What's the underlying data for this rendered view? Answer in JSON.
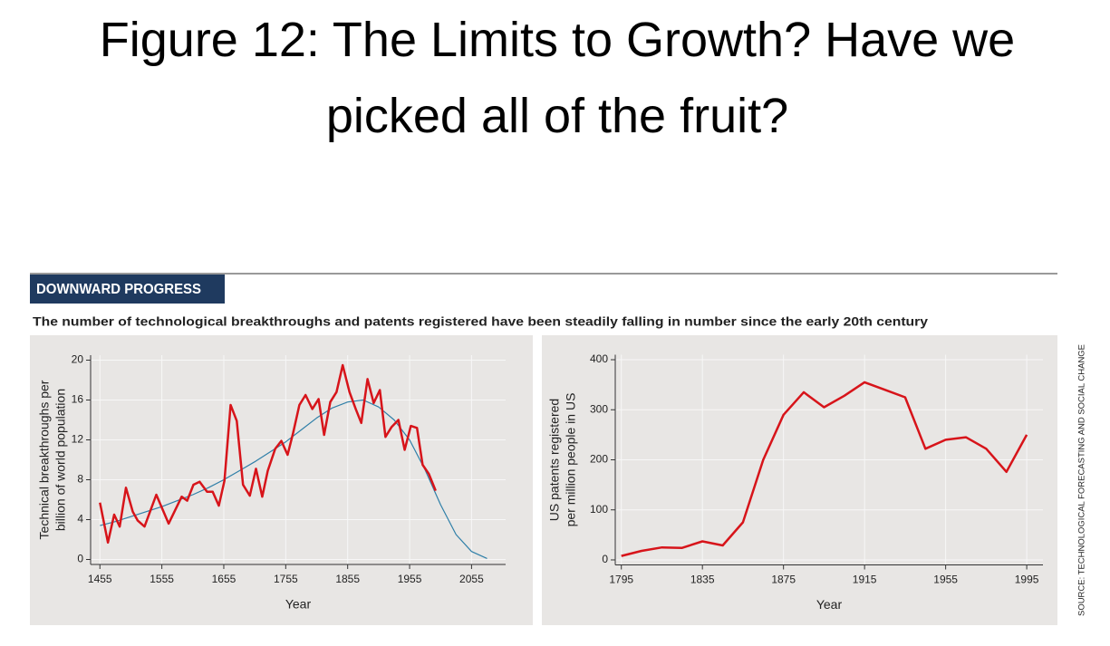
{
  "title": "Figure 12: The Limits to Growth? Have we picked all of the fruit?",
  "header": "DOWNWARD PROGRESS",
  "subtitle": "The number of technological breakthroughs and patents registered have been steadily falling in number since the early 20th century",
  "source": "SOURCE: TECHNOLOGICAL FORECASTING AND SOCIAL CHANGE",
  "chart_data": [
    {
      "type": "line",
      "xlabel": "Year",
      "ylabel": [
        "Technical breakthroughs per",
        "billion of world population"
      ],
      "xlim": [
        1440,
        2110
      ],
      "xticks": [
        1455,
        1555,
        1655,
        1755,
        1855,
        1955,
        2055
      ],
      "ylim": [
        -0.5,
        20.5
      ],
      "yticks": [
        0,
        4,
        8,
        12,
        16,
        20
      ],
      "grid": true,
      "series": [
        {
          "color": "#2f7fa8",
          "x": [
            1455,
            1480,
            1505,
            1530,
            1555,
            1580,
            1605,
            1630,
            1655,
            1680,
            1705,
            1730,
            1755,
            1780,
            1805,
            1830,
            1855,
            1880,
            1905,
            1930,
            1955,
            1980,
            2005,
            2030,
            2055,
            2080
          ],
          "values": [
            3.4,
            3.8,
            4.3,
            4.8,
            5.3,
            5.9,
            6.5,
            7.2,
            8.0,
            8.9,
            9.8,
            10.8,
            11.8,
            13.0,
            14.2,
            15.2,
            15.8,
            16.0,
            15.3,
            14.0,
            12.0,
            9.0,
            5.5,
            2.5,
            0.8,
            0.1
          ]
        },
        {
          "color": "#d7141a",
          "x": [
            1455,
            1468,
            1478,
            1487,
            1497,
            1508,
            1516,
            1527,
            1546,
            1566,
            1587,
            1596,
            1606,
            1616,
            1628,
            1637,
            1647,
            1656,
            1666,
            1676,
            1686,
            1697,
            1707,
            1717,
            1726,
            1738,
            1748,
            1758,
            1767,
            1777,
            1787,
            1798,
            1808,
            1817,
            1827,
            1837,
            1847,
            1858,
            1868,
            1877,
            1887,
            1897,
            1907,
            1916,
            1926,
            1937,
            1947,
            1957,
            1967,
            1976,
            1986,
            1997
          ],
          "values": [
            5.7,
            1.7,
            4.5,
            3.3,
            7.2,
            4.8,
            3.9,
            3.3,
            6.5,
            3.6,
            6.3,
            5.9,
            7.5,
            7.8,
            6.8,
            6.8,
            5.4,
            7.9,
            15.5,
            13.9,
            7.5,
            6.4,
            9.1,
            6.3,
            8.9,
            11.1,
            11.9,
            10.5,
            12.7,
            15.5,
            16.5,
            15.1,
            16.1,
            12.5,
            15.8,
            16.8,
            19.5,
            16.8,
            15.1,
            13.7,
            18.1,
            15.7,
            17.0,
            12.3,
            13.3,
            14.0,
            11.0,
            13.4,
            13.2,
            9.5,
            8.6,
            6.9
          ]
        }
      ]
    },
    {
      "type": "line",
      "xlabel": "Year",
      "ylabel": [
        "US patents registered",
        "per million people in US"
      ],
      "xlim": [
        1792,
        2003
      ],
      "xticks": [
        1795,
        1835,
        1875,
        1915,
        1955,
        1995
      ],
      "ylim": [
        -10,
        410
      ],
      "yticks": [
        0,
        100,
        200,
        300,
        400
      ],
      "grid": true,
      "series": [
        {
          "color": "#d7141a",
          "x": [
            1795,
            1805,
            1815,
            1825,
            1835,
            1845,
            1855,
            1865,
            1875,
            1885,
            1895,
            1905,
            1915,
            1925,
            1935,
            1945,
            1955,
            1965,
            1975,
            1985,
            1995
          ],
          "values": [
            8,
            18,
            25,
            24,
            37,
            29,
            75,
            200,
            290,
            335,
            305,
            328,
            355,
            340,
            325,
            222,
            240,
            245,
            222,
            176,
            250
          ]
        }
      ]
    }
  ]
}
